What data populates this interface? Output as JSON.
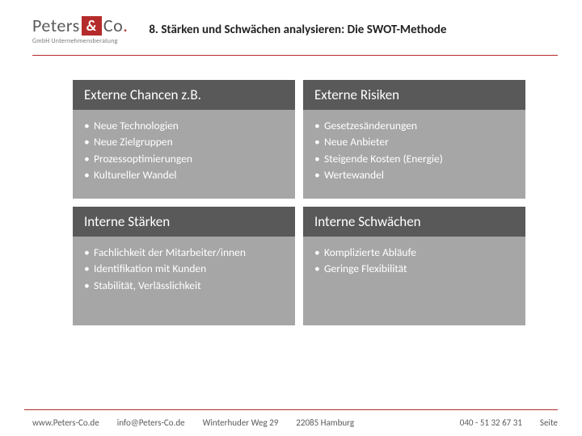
{
  "logo": {
    "name_part1": "Peters",
    "amp": "&",
    "name_part2": "Co",
    "dot": ".",
    "subtitle": "GmbH Unternehmensberatung"
  },
  "title": "8. Stärken und Schwächen analysieren: Die SWOT-Methode",
  "swot": {
    "q1": {
      "header": "Externe Chancen z.B.",
      "items": [
        "Neue Technologien",
        "Neue Zielgruppen",
        "Prozessoptimierungen",
        "Kultureller Wandel"
      ]
    },
    "q2": {
      "header": "Externe Risiken",
      "items": [
        "Gesetzesänderungen",
        "Neue Anbieter",
        "Steigende Kosten (Energie)",
        "Wertewandel"
      ]
    },
    "q3": {
      "header": "Interne Stärken",
      "items": [
        "Fachlichkeit der Mitarbeiter/innen",
        "Identifikation mit Kunden",
        "Stabilität, Verlässlichkeit"
      ]
    },
    "q4": {
      "header": "Interne Schwächen",
      "items": [
        "Komplizierte Abläufe",
        "Geringe Flexibilität"
      ]
    }
  },
  "footer": {
    "website": "www.Peters-Co.de",
    "email": "info@Peters-Co.de",
    "street": "Winterhuder Weg 29",
    "city": "22085 Hamburg",
    "phone": "040  - 51 32 67 31",
    "page_label": "Seite"
  },
  "colors": {
    "accent": "#b52b2b",
    "header_bg": "#595959",
    "body_bg": "#a6a6a6",
    "text": "#222222",
    "footer_text": "#5a5a5a"
  }
}
